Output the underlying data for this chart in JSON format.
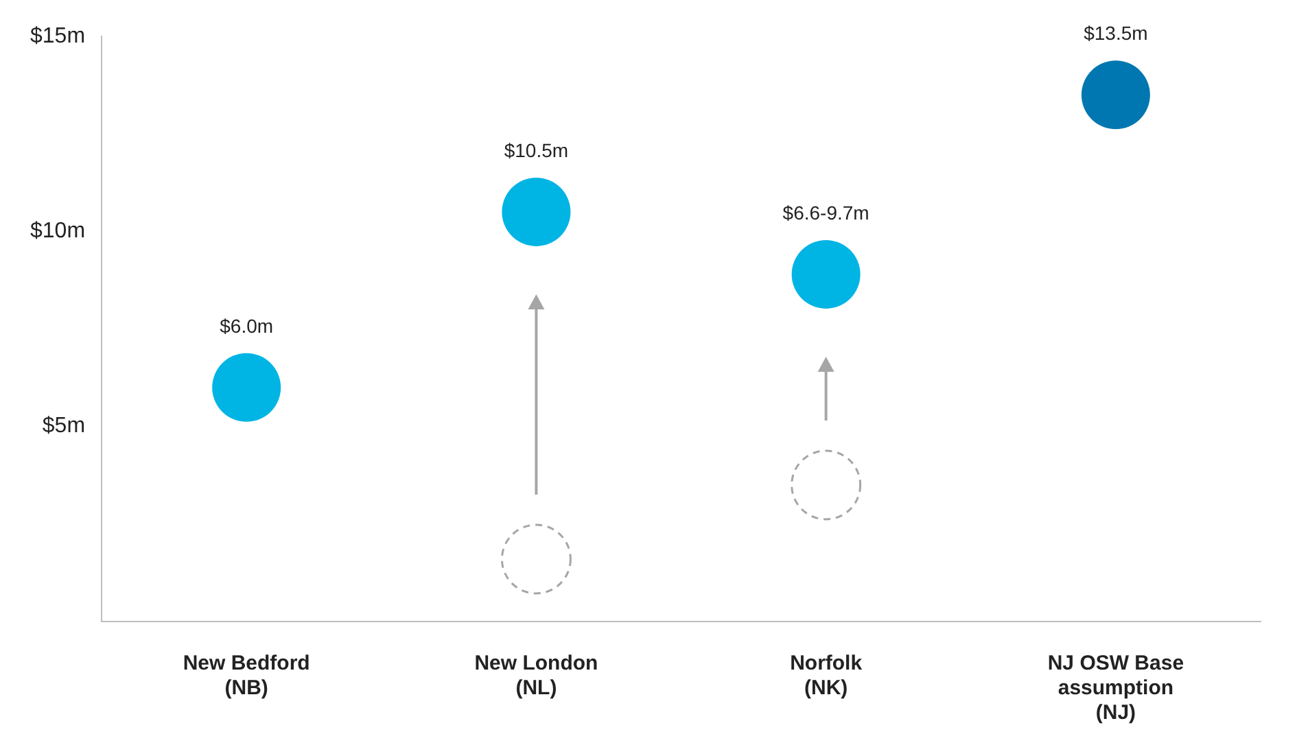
{
  "chart_data": {
    "type": "scatter",
    "categories": [
      "New Bedford\n(NB)",
      "New London\n(NL)",
      "Norfolk\n(NK)",
      "NJ OSW Base\nassumption\n(NJ)"
    ],
    "series": [
      {
        "colors": [
          "#00b4e4",
          "#00b4e4",
          "#00b4e4",
          "#0077b0"
        ],
        "values": [
          6.0,
          10.5,
          8.9,
          13.5
        ],
        "value_labels": [
          "$6.0m",
          "$10.5m",
          "$6.6-9.7m",
          "$13.5m"
        ]
      },
      {
        "color": "#a6a6a6",
        "line_style": "dashed",
        "values": [
          null,
          1.6,
          3.5,
          null
        ]
      }
    ],
    "ylim": [
      0,
      15
    ],
    "yticks": [
      {
        "value": 5,
        "label": "$5m"
      },
      {
        "value": 10,
        "label": "$10m"
      },
      {
        "value": 15,
        "label": "$15m"
      }
    ],
    "grid": false,
    "legend": false,
    "marker": "circle"
  }
}
